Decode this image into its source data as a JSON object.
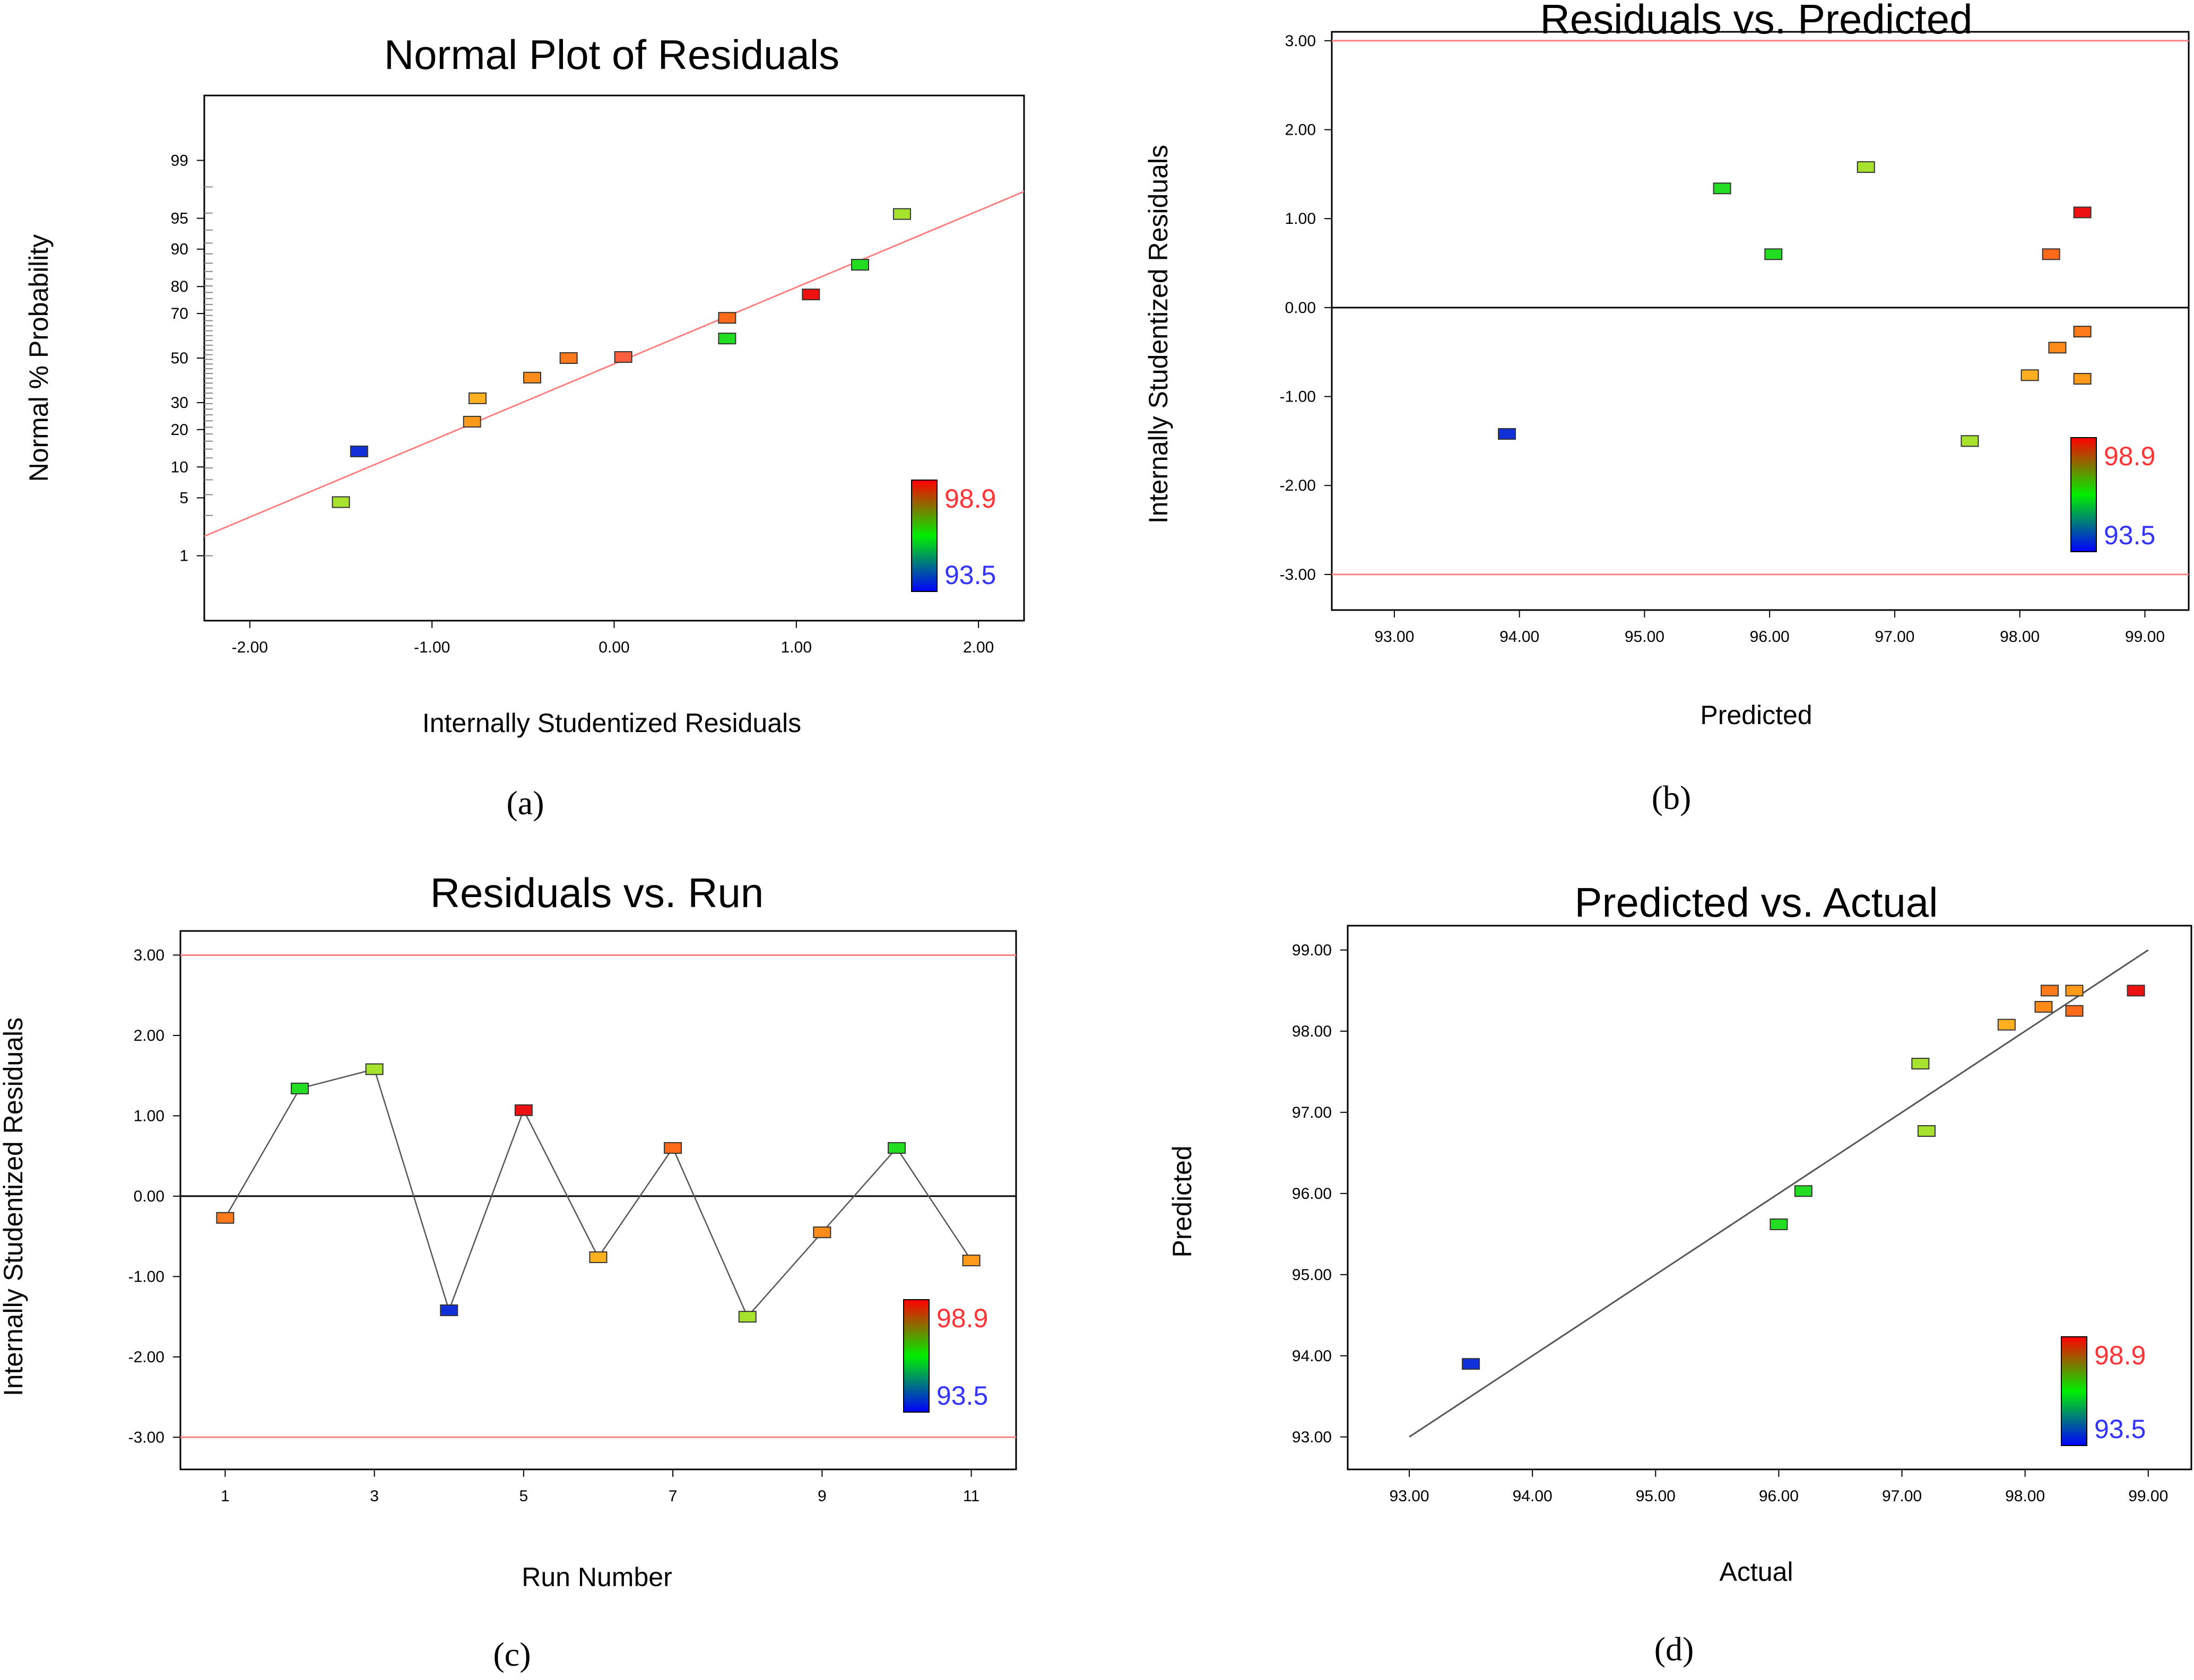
{
  "figure": {
    "captions": [
      "(a)",
      "(b)",
      "(c)",
      "(d)"
    ],
    "colorbar": {
      "max_label": "98.9",
      "min_label": "93.5",
      "max_color": "#ff3333",
      "min_color": "#3333ff"
    }
  },
  "chart_data": [
    {
      "id": "a",
      "type": "scatter",
      "title": "Normal Plot of Residuals",
      "xlabel": "Internally Studentized Residuals",
      "ylabel": "Normal % Probability",
      "xlim": [
        -2.25,
        2.25
      ],
      "xticks": [
        "-2.00",
        "-1.00",
        "0.00",
        "1.00",
        "2.00"
      ],
      "xtick_values": [
        -2,
        -1,
        0,
        1,
        2
      ],
      "yscale": "normal-probability",
      "ylim": [
        0.1,
        99.9
      ],
      "yticks": [
        "99",
        "95",
        "90",
        "80",
        "70",
        "50",
        "30",
        "20",
        "10",
        "5",
        "1"
      ],
      "ytick_values": [
        99,
        95,
        90,
        80,
        70,
        50,
        30,
        20,
        10,
        5,
        1
      ],
      "fit_line": {
        "x": [
          -2.25,
          2.25
        ],
        "y": [
          1.8,
          97.5
        ],
        "color": "#ff8080"
      },
      "points": [
        {
          "x": -1.5,
          "y": 4.5,
          "color": "#a6e22e"
        },
        {
          "x": -1.4,
          "y": 13.6,
          "color": "#1230d8"
        },
        {
          "x": -0.78,
          "y": 22.7,
          "color": "#ff9a1a"
        },
        {
          "x": -0.75,
          "y": 31.8,
          "color": "#ffb020"
        },
        {
          "x": -0.45,
          "y": 40.9,
          "color": "#ff8c1a"
        },
        {
          "x": -0.25,
          "y": 50.0,
          "color": "#ff7a1a"
        },
        {
          "x": 0.05,
          "y": 50.5,
          "color": "#ff6040"
        },
        {
          "x": 0.62,
          "y": 59.1,
          "color": "#22dd22"
        },
        {
          "x": 0.62,
          "y": 68.2,
          "color": "#ff6a1a"
        },
        {
          "x": 1.08,
          "y": 77.3,
          "color": "#ee1111"
        },
        {
          "x": 1.35,
          "y": 86.4,
          "color": "#22dd22"
        },
        {
          "x": 1.58,
          "y": 95.5,
          "color": "#a6e22e"
        }
      ]
    },
    {
      "id": "b",
      "type": "scatter",
      "title": "Residuals vs. Predicted",
      "xlabel": "Predicted",
      "ylabel": "Internally Studentized Residuals",
      "xlim": [
        92.5,
        99.35
      ],
      "xticks": [
        "93.00",
        "94.00",
        "95.00",
        "96.00",
        "97.00",
        "98.00",
        "99.00"
      ],
      "xtick_values": [
        93,
        94,
        95,
        96,
        97,
        98,
        99
      ],
      "ylim": [
        -3.4,
        3.1
      ],
      "yticks": [
        "3.00",
        "2.00",
        "1.00",
        "0.00",
        "-1.00",
        "-2.00",
        "-3.00"
      ],
      "ytick_values": [
        3,
        2,
        1,
        0,
        -1,
        -2,
        -3
      ],
      "hlines": [
        {
          "y": 3,
          "color": "#ff8080"
        },
        {
          "y": 0,
          "color": "#000000"
        },
        {
          "y": -3,
          "color": "#ff8080"
        }
      ],
      "points": [
        {
          "x": 93.9,
          "y": -1.42,
          "color": "#1230d8"
        },
        {
          "x": 95.62,
          "y": 1.34,
          "color": "#22dd22"
        },
        {
          "x": 96.03,
          "y": 0.6,
          "color": "#22dd22"
        },
        {
          "x": 96.77,
          "y": 1.58,
          "color": "#a6e22e"
        },
        {
          "x": 97.6,
          "y": -1.5,
          "color": "#a6e22e"
        },
        {
          "x": 98.08,
          "y": -0.76,
          "color": "#ffb020"
        },
        {
          "x": 98.25,
          "y": 0.6,
          "color": "#ff6a1a"
        },
        {
          "x": 98.3,
          "y": -0.45,
          "color": "#ff8c1a"
        },
        {
          "x": 98.5,
          "y": 1.07,
          "color": "#ee1111"
        },
        {
          "x": 98.5,
          "y": -0.27,
          "color": "#ff7a1a"
        },
        {
          "x": 98.5,
          "y": -0.8,
          "color": "#ff9a1a"
        }
      ]
    },
    {
      "id": "c",
      "type": "line",
      "title": "Residuals vs. Run",
      "xlabel": "Run Number",
      "ylabel": "Internally Studentized Residuals",
      "xlim": [
        0.4,
        11.6
      ],
      "xticks": [
        "1",
        "3",
        "5",
        "7",
        "9",
        "11"
      ],
      "xtick_values": [
        1,
        3,
        5,
        7,
        9,
        11
      ],
      "ylim": [
        -3.4,
        3.3
      ],
      "yticks": [
        "3.00",
        "2.00",
        "1.00",
        "0.00",
        "-1.00",
        "-2.00",
        "-3.00"
      ],
      "ytick_values": [
        3,
        2,
        1,
        0,
        -1,
        -2,
        -3
      ],
      "hlines": [
        {
          "y": 3,
          "color": "#ff8080"
        },
        {
          "y": 0,
          "color": "#000000"
        },
        {
          "y": -3,
          "color": "#ff8080"
        }
      ],
      "points": [
        {
          "x": 1,
          "y": -0.27,
          "color": "#ff7a1a"
        },
        {
          "x": 2,
          "y": 1.34,
          "color": "#22dd22"
        },
        {
          "x": 3,
          "y": 1.58,
          "color": "#a6e22e"
        },
        {
          "x": 4,
          "y": -1.42,
          "color": "#1230d8"
        },
        {
          "x": 5,
          "y": 1.07,
          "color": "#ee1111"
        },
        {
          "x": 6,
          "y": -0.76,
          "color": "#ffb020"
        },
        {
          "x": 7,
          "y": 0.6,
          "color": "#ff6a1a"
        },
        {
          "x": 8,
          "y": -1.5,
          "color": "#a6e22e"
        },
        {
          "x": 9,
          "y": -0.45,
          "color": "#ff8c1a"
        },
        {
          "x": 10,
          "y": 0.6,
          "color": "#22dd22"
        },
        {
          "x": 11,
          "y": -0.8,
          "color": "#ff9a1a"
        }
      ]
    },
    {
      "id": "d",
      "type": "scatter",
      "title": "Predicted vs. Actual",
      "xlabel": "Actual",
      "ylabel": "Predicted",
      "xlim": [
        92.5,
        99.35
      ],
      "xticks": [
        "93.00",
        "94.00",
        "95.00",
        "96.00",
        "97.00",
        "98.00",
        "99.00"
      ],
      "xtick_values": [
        93,
        94,
        95,
        96,
        97,
        98,
        99
      ],
      "ylim": [
        92.6,
        99.3
      ],
      "yticks": [
        "99.00",
        "98.00",
        "97.00",
        "96.00",
        "95.00",
        "94.00",
        "93.00"
      ],
      "ytick_values": [
        99,
        98,
        97,
        96,
        95,
        94,
        93
      ],
      "fit_line": {
        "x": [
          93,
          99
        ],
        "y": [
          93,
          99
        ],
        "color": "#555555"
      },
      "points": [
        {
          "x": 93.5,
          "y": 93.9,
          "color": "#1230d8"
        },
        {
          "x": 96.0,
          "y": 95.62,
          "color": "#22dd22"
        },
        {
          "x": 96.2,
          "y": 96.03,
          "color": "#22dd22"
        },
        {
          "x": 97.15,
          "y": 97.6,
          "color": "#a6e22e"
        },
        {
          "x": 97.2,
          "y": 96.77,
          "color": "#a6e22e"
        },
        {
          "x": 97.85,
          "y": 98.08,
          "color": "#ffb020"
        },
        {
          "x": 98.15,
          "y": 98.3,
          "color": "#ff8c1a"
        },
        {
          "x": 98.2,
          "y": 98.5,
          "color": "#ff7a1a"
        },
        {
          "x": 98.4,
          "y": 98.25,
          "color": "#ff6a1a"
        },
        {
          "x": 98.4,
          "y": 98.5,
          "color": "#ff9a1a"
        },
        {
          "x": 98.9,
          "y": 98.5,
          "color": "#ee1111"
        }
      ]
    }
  ]
}
